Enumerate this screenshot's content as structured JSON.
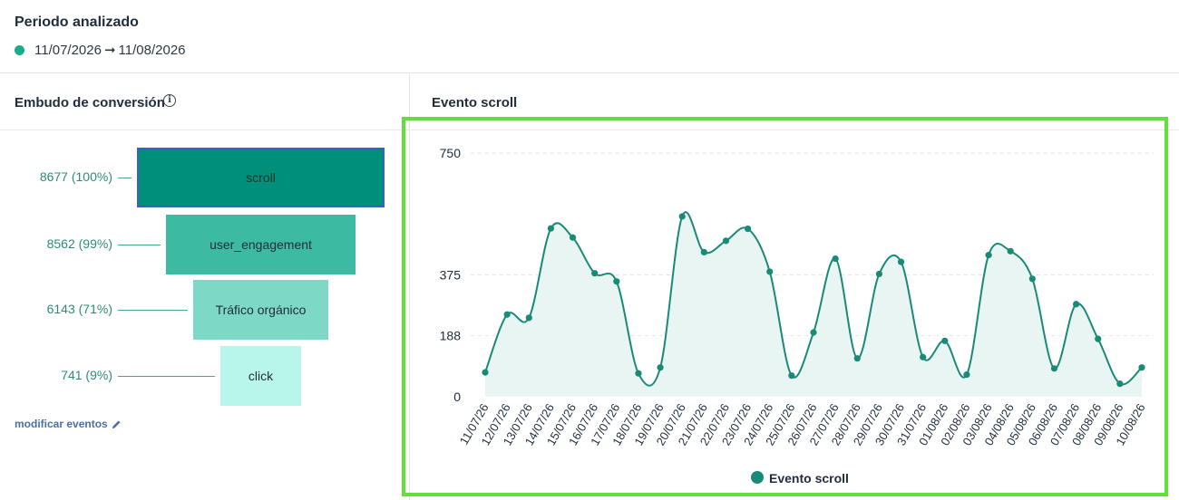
{
  "period": {
    "title": "Periodo analizado",
    "start": "11/07/2026",
    "arrow": "➞",
    "end": "11/08/2026",
    "dot_color": "#1aab8b"
  },
  "funnel": {
    "title": "Embudo de conversión",
    "info_icon": "info-icon",
    "edit_label": "modificar eventos",
    "edit_icon": "pencil-icon",
    "steps": [
      {
        "label": "8677 (100%)",
        "name": "scroll",
        "value": 8677,
        "percent": 100,
        "color": "#00907a",
        "text_color": "#13332d",
        "selected": true
      },
      {
        "label": "8562 (99%)",
        "name": "user_engagement",
        "value": 8562,
        "percent": 99,
        "color": "#3cbba2",
        "text_color": "#1f2d3d",
        "selected": false
      },
      {
        "label": "6143 (71%)",
        "name": "Tráfico orgánico",
        "value": 6143,
        "percent": 71,
        "color": "#7dd9c6",
        "text_color": "#1f2d3d",
        "selected": false
      },
      {
        "label": "741 (9%)",
        "name": "click",
        "value": 741,
        "percent": 9,
        "color": "#b8f6ea",
        "text_color": "#1f2d3d",
        "selected": false
      }
    ]
  },
  "chart_panel": {
    "title": "Evento scroll"
  },
  "chart_data": {
    "type": "area",
    "title": "",
    "xlabel": "",
    "ylabel": "",
    "ylim": [
      0,
      750
    ],
    "yticks": [
      0,
      188,
      375,
      750
    ],
    "grid": true,
    "legend_position": "bottom",
    "categories": [
      "11/07/26",
      "12/07/26",
      "13/07/26",
      "14/07/26",
      "15/07/26",
      "16/07/26",
      "17/07/26",
      "18/07/26",
      "19/07/26",
      "20/07/26",
      "21/07/26",
      "22/07/26",
      "23/07/26",
      "24/07/26",
      "25/07/26",
      "26/07/26",
      "27/07/26",
      "28/07/26",
      "29/07/26",
      "30/07/26",
      "31/07/26",
      "01/08/26",
      "02/08/26",
      "03/08/26",
      "04/08/26",
      "05/08/26",
      "06/08/26",
      "07/08/26",
      "08/08/26",
      "09/08/26",
      "10/08/26"
    ],
    "series": [
      {
        "name": "Evento scroll",
        "color": "#1a8a78",
        "values": [
          75,
          253,
          243,
          518,
          490,
          380,
          355,
          72,
          90,
          555,
          445,
          480,
          517,
          385,
          65,
          198,
          425,
          118,
          378,
          415,
          122,
          172,
          68,
          436,
          448,
          363,
          87,
          285,
          178,
          40,
          90
        ]
      }
    ]
  }
}
